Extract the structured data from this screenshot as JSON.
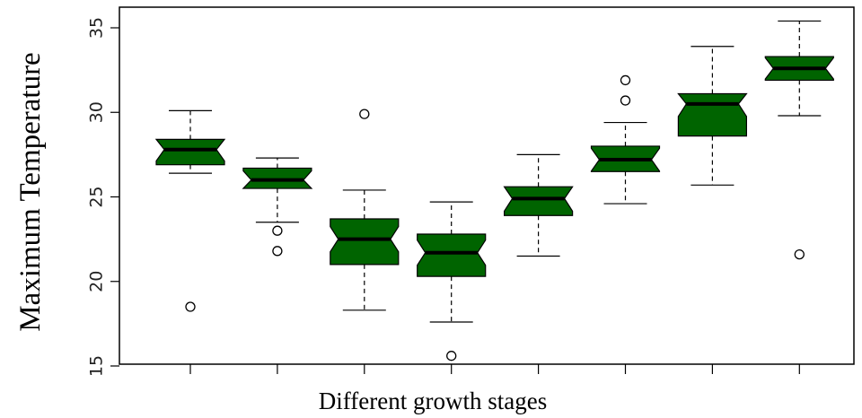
{
  "chart_data": {
    "type": "boxplot",
    "notched": true,
    "title": "",
    "xlabel": "Different growth stages",
    "ylabel": "Maximum Temperature",
    "ylim": [
      15,
      36
    ],
    "yticks": [
      15,
      20,
      25,
      30,
      35
    ],
    "grid": false,
    "legend": "none",
    "box_color": "#006400",
    "outline_color": "#000000",
    "boxes": [
      {
        "q1": 26.9,
        "median": 27.8,
        "q3": 28.4,
        "whisker_low": 26.4,
        "whisker_high": 30.1,
        "outliers": [
          18.5
        ]
      },
      {
        "q1": 25.5,
        "median": 26.0,
        "q3": 26.7,
        "whisker_low": 23.5,
        "whisker_high": 27.3,
        "outliers": [
          23.0,
          21.8
        ]
      },
      {
        "q1": 21.0,
        "median": 22.5,
        "q3": 23.7,
        "whisker_low": 18.3,
        "whisker_high": 25.4,
        "outliers": [
          29.9
        ]
      },
      {
        "q1": 20.3,
        "median": 21.7,
        "q3": 22.8,
        "whisker_low": 17.6,
        "whisker_high": 24.7,
        "outliers": [
          15.6
        ]
      },
      {
        "q1": 23.9,
        "median": 24.9,
        "q3": 25.6,
        "whisker_low": 21.5,
        "whisker_high": 27.5,
        "outliers": []
      },
      {
        "q1": 26.5,
        "median": 27.2,
        "q3": 28.0,
        "whisker_low": 24.6,
        "whisker_high": 29.4,
        "outliers": [
          30.7,
          31.9
        ]
      },
      {
        "q1": 28.6,
        "median": 30.5,
        "q3": 31.1,
        "whisker_low": 25.7,
        "whisker_high": 33.9,
        "outliers": []
      },
      {
        "q1": 31.9,
        "median": 32.6,
        "q3": 33.3,
        "whisker_low": 29.8,
        "whisker_high": 35.4,
        "outliers": [
          21.6
        ]
      }
    ]
  }
}
